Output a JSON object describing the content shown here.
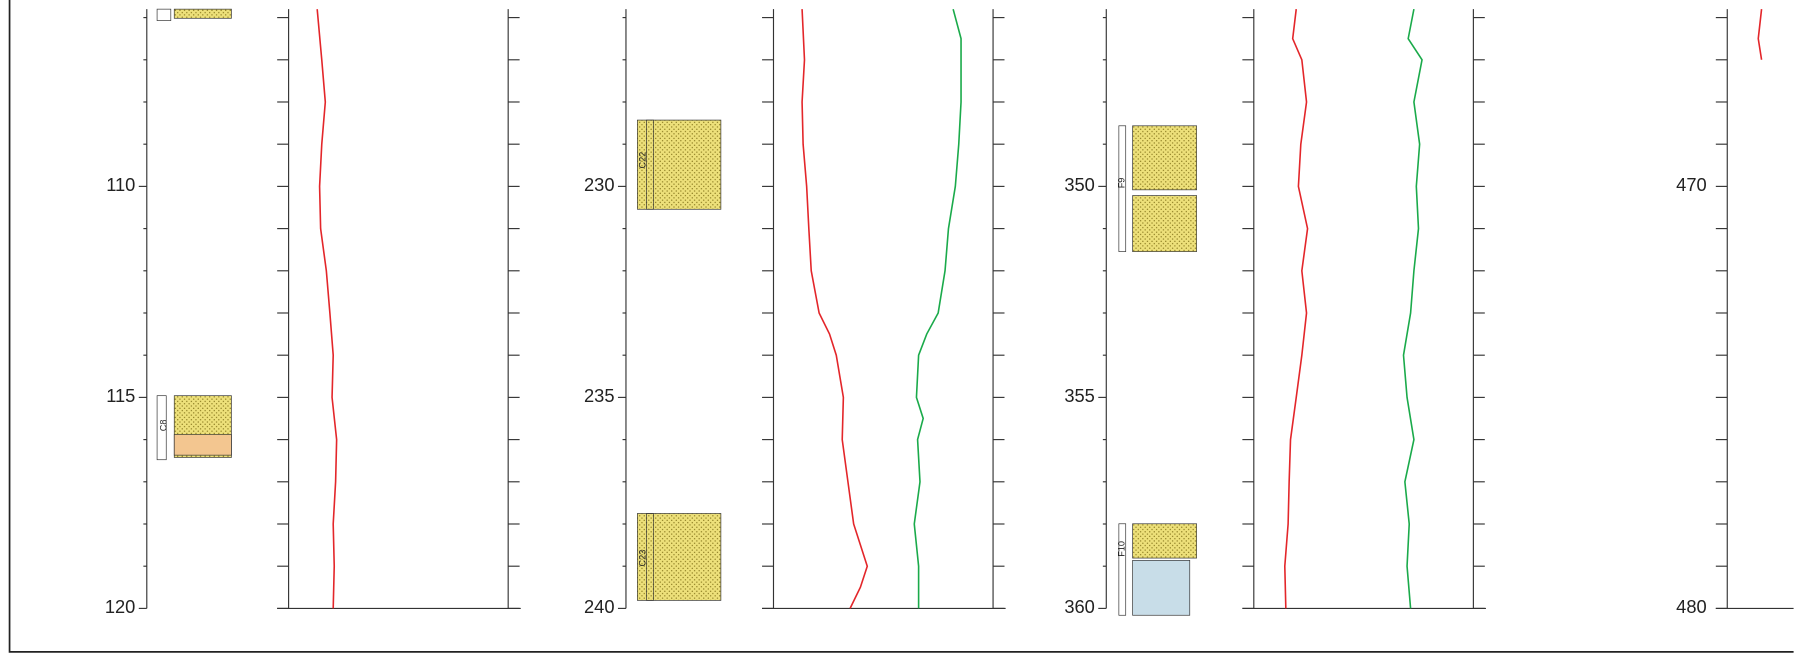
{
  "chart_data": [
    {
      "type": "line",
      "ylim": [
        105.8,
        120
      ],
      "yticks": [
        110,
        115,
        120
      ],
      "yminor": [
        106,
        107,
        108,
        109,
        111,
        112,
        113,
        114,
        116,
        117,
        118,
        119
      ],
      "xlim": [
        0,
        100
      ],
      "series": [
        {
          "color": "#e3262a",
          "depth": [
            105.8,
            107,
            108,
            109,
            110,
            111,
            112,
            113,
            114,
            115,
            116,
            117,
            118,
            119,
            120
          ],
          "values": [
            13.0,
            15.1,
            16.7,
            15.1,
            14.1,
            14.6,
            17.2,
            18.8,
            20.3,
            19.8,
            21.9,
            21.4,
            20.3,
            20.8,
            20.3
          ]
        }
      ],
      "lithology_labels": [
        "C8"
      ]
    },
    {
      "type": "line",
      "ylim": [
        225.8,
        240
      ],
      "yticks": [
        230,
        235,
        240
      ],
      "yminor": [
        226,
        227,
        228,
        229,
        231,
        232,
        233,
        234,
        236,
        237,
        238,
        239
      ],
      "xlim": [
        0,
        100
      ],
      "series": [
        {
          "color": "#e3262a",
          "depth": [
            225.8,
            227,
            228,
            229,
            230,
            231,
            232,
            233,
            233.5,
            234,
            235,
            236,
            237,
            238,
            239,
            239.5,
            240
          ],
          "values": [
            13.0,
            14.1,
            13.0,
            13.5,
            15.1,
            16.1,
            17.2,
            20.8,
            25.5,
            28.6,
            31.8,
            31.3,
            33.9,
            36.5,
            42.7,
            39.6,
            34.9
          ]
        },
        {
          "color": "#1aaa4a",
          "depth": [
            225.8,
            226.5,
            228,
            229,
            230,
            231,
            232,
            233,
            233.5,
            234,
            235,
            235.5,
            236,
            237,
            238,
            239,
            240
          ],
          "values": [
            81.8,
            85.4,
            85.4,
            84.4,
            82.8,
            79.7,
            78.1,
            75.0,
            69.8,
            66.1,
            65.1,
            68.2,
            65.6,
            66.7,
            64.1,
            66.1,
            66.1
          ]
        }
      ],
      "lithology_labels": [
        "C22",
        "C23"
      ]
    },
    {
      "type": "line",
      "ylim": [
        345.8,
        360
      ],
      "yticks": [
        350,
        355,
        360
      ],
      "yminor": [
        346,
        347,
        348,
        349,
        351,
        352,
        353,
        354,
        356,
        357,
        358,
        359
      ],
      "xlim": [
        0,
        100
      ],
      "series": [
        {
          "color": "#e3262a",
          "depth": [
            345.8,
            346.5,
            347,
            348,
            349,
            350,
            351,
            352,
            353,
            354,
            355,
            356,
            357,
            358,
            359,
            360
          ],
          "values": [
            19.3,
            17.7,
            21.9,
            24.0,
            21.4,
            20.3,
            24.5,
            21.9,
            24.0,
            21.9,
            19.3,
            16.7,
            16.1,
            15.6,
            14.1,
            14.6
          ]
        },
        {
          "color": "#1aaa4a",
          "depth": [
            345.8,
            346.5,
            347,
            348,
            349,
            350,
            351,
            352,
            353,
            354,
            355,
            356,
            357,
            358,
            359,
            360
          ],
          "values": [
            72.9,
            70.3,
            76.6,
            72.9,
            75.5,
            74.0,
            75.0,
            72.9,
            71.4,
            68.2,
            69.8,
            72.9,
            68.8,
            70.8,
            69.8,
            71.4
          ]
        }
      ],
      "lithology_labels": [
        "F9",
        "F10"
      ]
    },
    {
      "type": "line",
      "ylim": [
        465.8,
        480
      ],
      "yticks": [
        470,
        480
      ],
      "yminor": [
        466,
        467,
        468,
        469,
        471,
        472,
        473,
        474,
        475,
        476,
        477,
        478,
        479
      ],
      "xlim": [
        0,
        100
      ],
      "series": [
        {
          "color": "#e3262a",
          "depth": [
            465.8,
            466.5,
            467
          ],
          "values": [
            15.6,
            14.1,
            15.6
          ]
        }
      ],
      "lithology_labels": []
    }
  ]
}
